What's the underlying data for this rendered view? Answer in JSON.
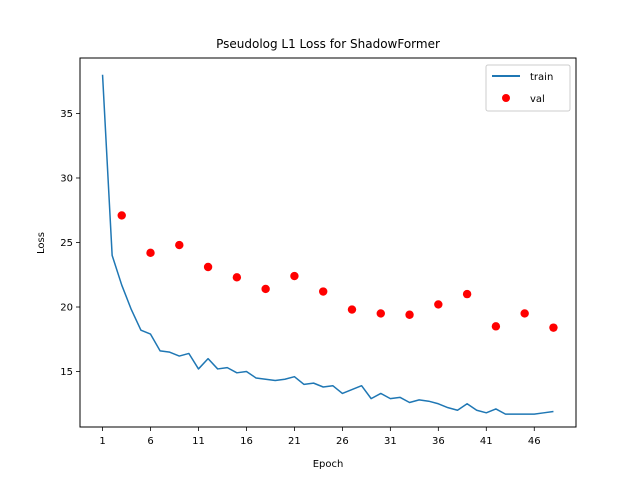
{
  "chart_data": {
    "type": "line",
    "title": "Pseudolog L1 Loss for ShadowFormer",
    "xlabel": "Epoch",
    "ylabel": "Loss",
    "xlim": [
      -1.35,
      50.35
    ],
    "ylim": [
      10.7,
      39.3
    ],
    "xticks": [
      1,
      6,
      11,
      16,
      21,
      26,
      31,
      36,
      41,
      46
    ],
    "yticks": [
      15,
      20,
      25,
      30,
      35
    ],
    "grid": false,
    "legend_position": "top-right",
    "series": [
      {
        "name": "train",
        "kind": "line",
        "color": "#1f77b4",
        "x": [
          1,
          2,
          3,
          4,
          5,
          6,
          7,
          8,
          9,
          10,
          11,
          12,
          13,
          14,
          15,
          16,
          17,
          18,
          19,
          20,
          21,
          22,
          23,
          24,
          25,
          26,
          27,
          28,
          29,
          30,
          31,
          32,
          33,
          34,
          35,
          36,
          37,
          38,
          39,
          40,
          41,
          42,
          43,
          44,
          45,
          46,
          47,
          48
        ],
        "y": [
          38.0,
          24.0,
          21.7,
          19.8,
          18.2,
          17.9,
          16.6,
          16.5,
          16.2,
          16.4,
          15.2,
          16.0,
          15.2,
          15.3,
          14.9,
          15.0,
          14.5,
          14.4,
          14.3,
          14.4,
          14.6,
          14.0,
          14.1,
          13.8,
          13.9,
          13.3,
          13.6,
          13.9,
          12.9,
          13.3,
          12.9,
          13.0,
          12.6,
          12.8,
          12.7,
          12.5,
          12.2,
          12.0,
          12.5,
          12.0,
          11.8,
          12.1,
          11.7,
          11.7,
          11.7,
          11.7,
          11.8,
          11.9
        ]
      },
      {
        "name": "val",
        "kind": "scatter",
        "color": "#ff0000",
        "x": [
          3,
          6,
          9,
          12,
          15,
          18,
          21,
          24,
          27,
          30,
          33,
          36,
          39,
          42,
          45,
          48
        ],
        "y": [
          27.1,
          24.2,
          24.8,
          23.1,
          22.3,
          21.4,
          22.4,
          21.2,
          19.8,
          19.5,
          19.4,
          20.2,
          21.0,
          18.5,
          19.5,
          18.4
        ]
      }
    ]
  }
}
